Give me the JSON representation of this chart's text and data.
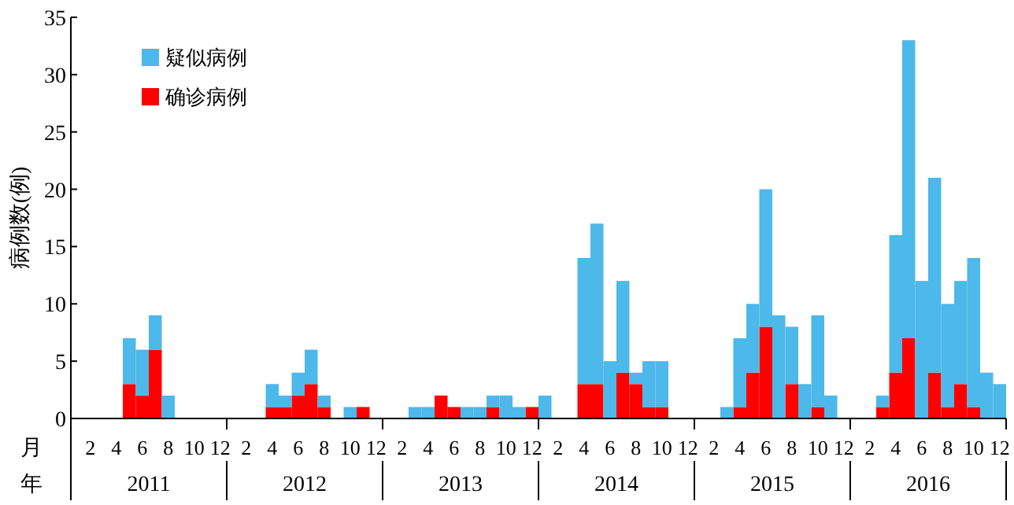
{
  "chart_data": {
    "type": "bar",
    "ylabel": "病例数(例)",
    "categories": [
      null,
      "2",
      null,
      "4",
      null,
      "6",
      null,
      "8",
      null,
      "10",
      null,
      "12",
      null,
      "2",
      null,
      "4",
      null,
      "6",
      null,
      "8",
      null,
      "10",
      null,
      "12",
      null,
      "2",
      null,
      "4",
      null,
      "6",
      null,
      "8",
      null,
      "10",
      null,
      "12",
      null,
      "2",
      null,
      "4",
      null,
      "6",
      null,
      "8",
      null,
      "10",
      null,
      "12",
      null,
      "2",
      null,
      "4",
      null,
      "6",
      null,
      "8",
      null,
      "10",
      null,
      "12",
      null,
      "2",
      null,
      "4",
      null,
      "6",
      null,
      "8",
      null,
      "10",
      null,
      "12"
    ],
    "series": [
      {
        "name": "确诊病例",
        "color": "#ff0000",
        "values": [
          0,
          0,
          0,
          0,
          3,
          2,
          6,
          0,
          0,
          0,
          0,
          0,
          0,
          0,
          0,
          1,
          1,
          2,
          3,
          1,
          0,
          0,
          1,
          0,
          0,
          0,
          0,
          0,
          2,
          1,
          0,
          0,
          1,
          0,
          0,
          1,
          0,
          0,
          0,
          3,
          3,
          0,
          4,
          3,
          1,
          1,
          0,
          0,
          0,
          0,
          0,
          1,
          4,
          8,
          0,
          3,
          0,
          1,
          0,
          0,
          0,
          0,
          1,
          4,
          7,
          0,
          4,
          1,
          3,
          1,
          0,
          0
        ]
      },
      {
        "name": "疑似病例",
        "color": "#4db8ea",
        "values": [
          0,
          0,
          0,
          0,
          4,
          4,
          3,
          2,
          0,
          0,
          0,
          0,
          0,
          0,
          0,
          2,
          1,
          2,
          3,
          1,
          0,
          1,
          0,
          0,
          0,
          0,
          1,
          1,
          0,
          0,
          1,
          1,
          1,
          2,
          1,
          0,
          2,
          0,
          0,
          11,
          14,
          5,
          8,
          1,
          4,
          4,
          0,
          0,
          0,
          0,
          1,
          6,
          6,
          12,
          9,
          5,
          3,
          8,
          2,
          0,
          0,
          0,
          1,
          12,
          26,
          12,
          17,
          9,
          9,
          13,
          4,
          3
        ]
      }
    ],
    "stacked": true,
    "ylim": [
      0,
      35
    ],
    "yticks": [
      0,
      5,
      10,
      15,
      20,
      25,
      30,
      35
    ],
    "legend": "top left",
    "annotations": [
      "月",
      "年",
      "2011",
      "2012",
      "2013",
      "2014",
      "2015",
      "2016"
    ]
  }
}
